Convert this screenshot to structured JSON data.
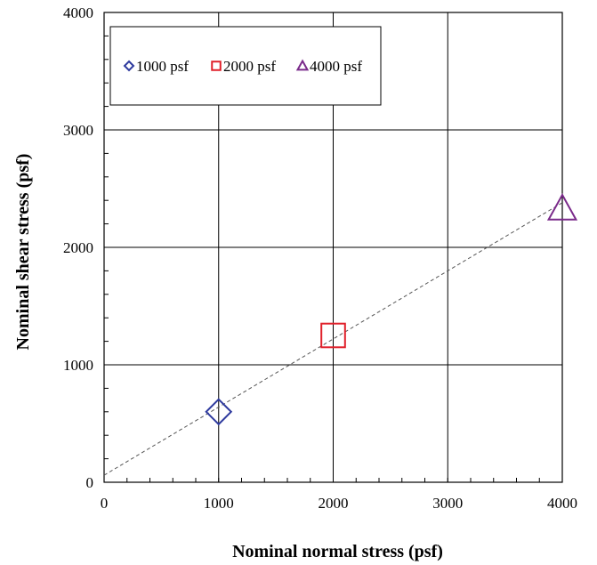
{
  "chart_data": {
    "type": "scatter",
    "title": "",
    "xlabel": "Nominal normal stress (psf)",
    "ylabel": "Nominal shear stress (psf)",
    "xlim": [
      0,
      4000
    ],
    "ylim": [
      0,
      4000
    ],
    "x_ticks": [
      "0",
      "1000",
      "2000",
      "3000",
      "4000"
    ],
    "y_ticks": [
      "0",
      "1000",
      "2000",
      "3000",
      "4000"
    ],
    "grid": true,
    "legend_position": "top-left",
    "series": [
      {
        "name": "1000 psf",
        "marker": "diamond",
        "color": "#2e3a9e",
        "points": [
          {
            "x": 1000,
            "y": 600
          }
        ]
      },
      {
        "name": "2000 psf",
        "marker": "square",
        "color": "#e0202a",
        "points": [
          {
            "x": 2000,
            "y": 1250
          }
        ]
      },
      {
        "name": "4000 psf",
        "marker": "triangle",
        "color": "#7a2a8a",
        "points": [
          {
            "x": 4000,
            "y": 2330
          }
        ]
      }
    ],
    "trendline": {
      "style": "dashed",
      "color": "#555555",
      "x": [
        0,
        4000
      ],
      "y": [
        60,
        2380
      ]
    }
  }
}
